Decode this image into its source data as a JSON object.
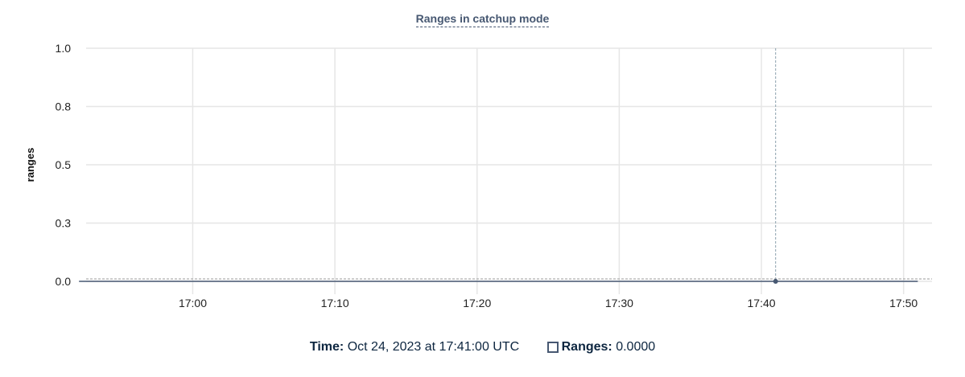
{
  "chart_data": {
    "type": "line",
    "title": "Ranges in catchup mode",
    "ylabel": "ranges",
    "xlabel": "",
    "ylim": [
      0,
      1
    ],
    "yticks": [
      0,
      0.25,
      0.5,
      0.75,
      1
    ],
    "ytick_labels": [
      "0.0",
      "0.3",
      "0.5",
      "0.8",
      "1.0"
    ],
    "xlim": [
      "16:52:30",
      "17:52:00"
    ],
    "xticks": [
      "17:00",
      "17:10",
      "17:20",
      "17:30",
      "17:40",
      "17:50"
    ],
    "grid": true,
    "series": [
      {
        "name": "Ranges",
        "color": "#475872",
        "x_start": "16:52",
        "x_end": "17:51",
        "interval_minutes": 1,
        "value": 0
      }
    ],
    "hover": {
      "time": "17:41",
      "value": 0
    }
  },
  "legend": {
    "time_label": "Time:",
    "time_value": "Oct 24, 2023 at 17:41:00 UTC",
    "series_label": "Ranges:",
    "series_value": "0.0000"
  }
}
